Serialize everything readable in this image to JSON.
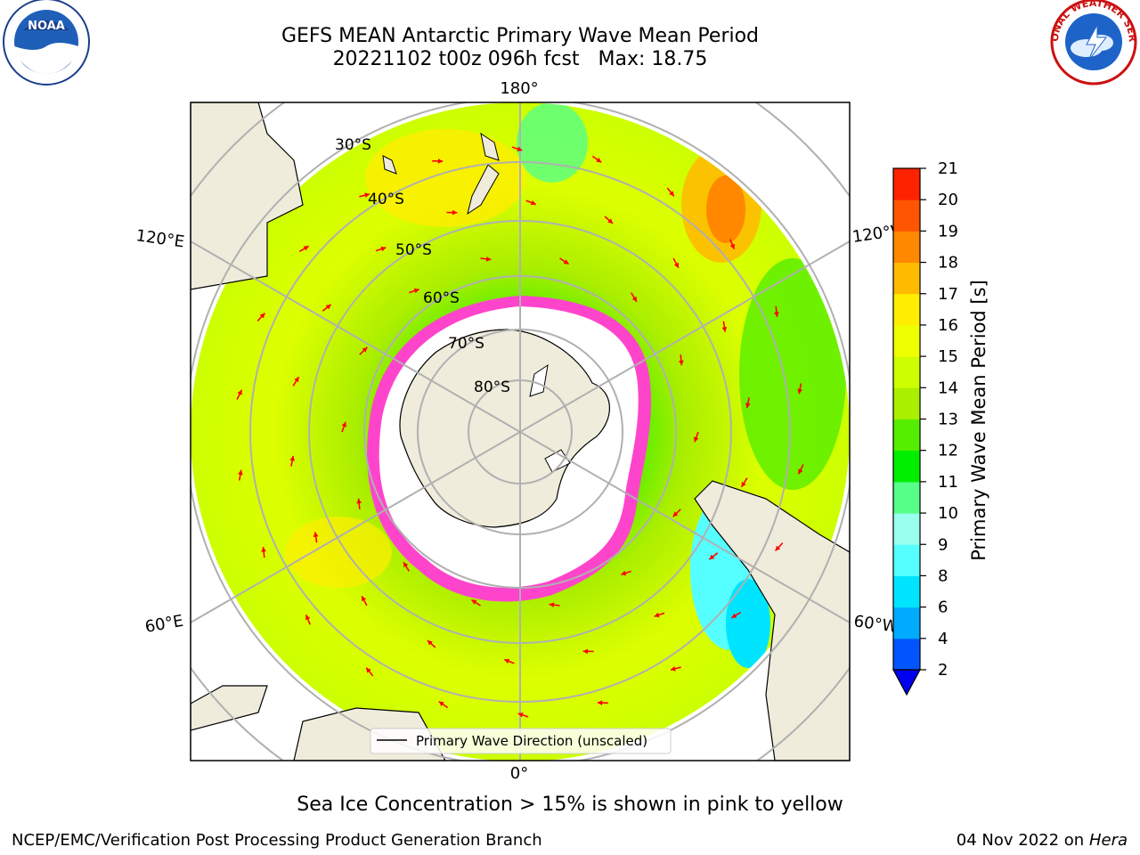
{
  "header": {
    "title_line1": "GEFS MEAN Antarctic Primary Wave Mean Period",
    "title_run": "20221102 t00z 096h fcst",
    "title_max": "Max: 18.75"
  },
  "logos": {
    "left": "NOAA",
    "right": "NATIONAL WEATHER SERVICE"
  },
  "map": {
    "projection": "south-polar-stereographic",
    "longitude_labels": [
      "180°",
      "120°E",
      "120°W",
      "60°E",
      "60°W",
      "0°"
    ],
    "latitude_labels": [
      "30°S",
      "40°S",
      "50°S",
      "60°S",
      "70°S",
      "80°S"
    ],
    "legend_label": "Primary Wave Direction (unscaled)",
    "land_color": "#efecdc",
    "vector_color": "#ff0000"
  },
  "colorbar": {
    "title": "Primary Wave Mean Period [s]",
    "ticks": [
      "2",
      "4",
      "6",
      "8",
      "9",
      "10",
      "11",
      "12",
      "13",
      "14",
      "15",
      "16",
      "17",
      "18",
      "19",
      "20",
      "21"
    ],
    "colors": [
      "#0055ff",
      "#00aaff",
      "#00e5ff",
      "#55ffff",
      "#99ffee",
      "#55ff88",
      "#00ee00",
      "#55ee00",
      "#aaee00",
      "#ccff00",
      "#eeff00",
      "#ffee00",
      "#ffbb00",
      "#ff8800",
      "#ff5500",
      "#ff2200"
    ],
    "extend_color": "#0000ee"
  },
  "caption": "Sea Ice Concentration > 15% is shown in pink to yellow",
  "footer": {
    "left": "NCEP/EMC/Verification Post Processing Product Generation Branch",
    "right_date": "04 Nov 2022 on",
    "right_host": "Hera"
  }
}
